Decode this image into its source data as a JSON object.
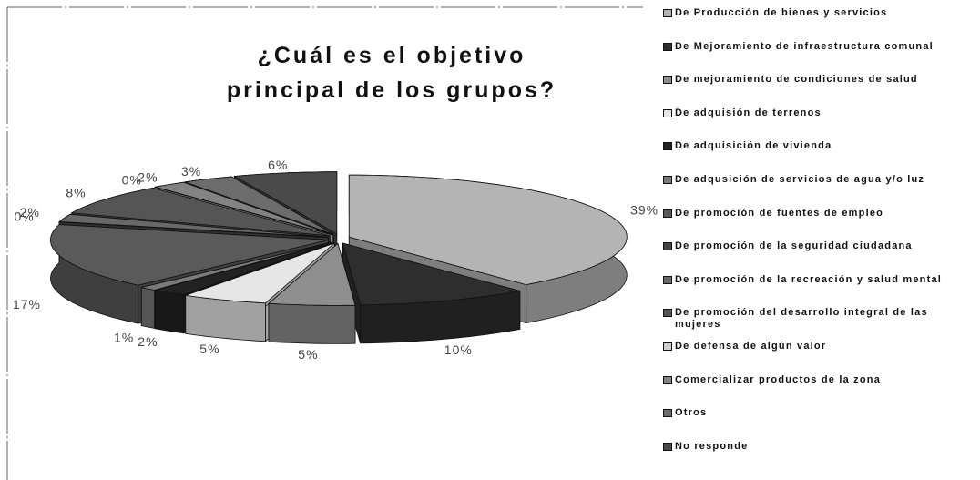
{
  "chart_data": {
    "type": "pie",
    "title": "¿Cuál es el objetivo principal de los grupos?",
    "categories": [
      "De Producción de bienes y servicios",
      "De Mejoramiento de infraestructura comunal",
      "De mejoramiento de condiciones de salud",
      "De adquisión de terrenos",
      "De adquisición de vivienda",
      "De adqusición de servicios de agua y/o luz",
      "De promoción de fuentes de empleo",
      "De promoción de la seguridad ciudadana",
      "De promoción de la recreación y salud mental",
      "De promoción del desarrollo integral de las mujeres",
      "De defensa de algún valor",
      "Comercializar productos de la zona",
      "Otros",
      "No responde"
    ],
    "values": [
      39,
      10,
      5,
      5,
      2,
      1,
      17,
      0,
      2,
      8,
      0,
      2,
      3,
      6
    ],
    "value_labels": [
      "39%",
      "10%",
      "5%",
      "5%",
      "2%",
      "1%",
      "17%",
      "0%",
      "2%",
      "8%",
      "0%",
      "2%",
      "3%",
      "6%"
    ],
    "colors": [
      "#b4b4b4",
      "#2e2e2e",
      "#8e8e8e",
      "#e6e6e6",
      "#222222",
      "#7a7a7a",
      "#5a5a5a",
      "#444444",
      "#686868",
      "#555555",
      "#cfcfcf",
      "#838383",
      "#6c6c6c",
      "#4a4a4a"
    ],
    "legend": "right"
  }
}
